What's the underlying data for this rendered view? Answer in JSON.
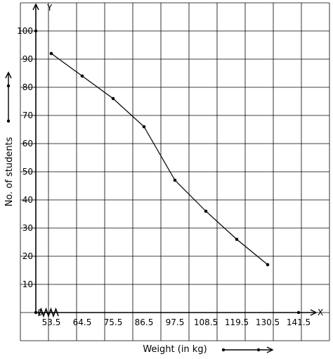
{
  "chart_data": {
    "type": "line",
    "title": "",
    "xlabel": "Weight (in kg)",
    "ylabel": "No. of students",
    "x_axis_letter": "X",
    "y_axis_letter": "Y",
    "origin_label": "0",
    "x_tick_labels": [
      "53.5",
      "64.5",
      "75.5",
      "86.5",
      "97.5",
      "108.5",
      "119.5",
      "130.5",
      "141.5"
    ],
    "y_tick_labels": [
      "10",
      "20",
      "30",
      "40",
      "50",
      "60",
      "70",
      "80",
      "90",
      "100"
    ],
    "x": [
      53.5,
      64.5,
      75.5,
      86.5,
      97.5,
      108.5,
      119.5,
      130.5
    ],
    "y": [
      92,
      84,
      76,
      66,
      47,
      36,
      26,
      17
    ],
    "xlim": [
      42.5,
      152.5
    ],
    "ylim": [
      -10,
      110
    ],
    "axis_break": "x",
    "grid": true,
    "colors": {
      "line": "#000000",
      "grid": "#000000",
      "background": "#ffffff"
    }
  }
}
